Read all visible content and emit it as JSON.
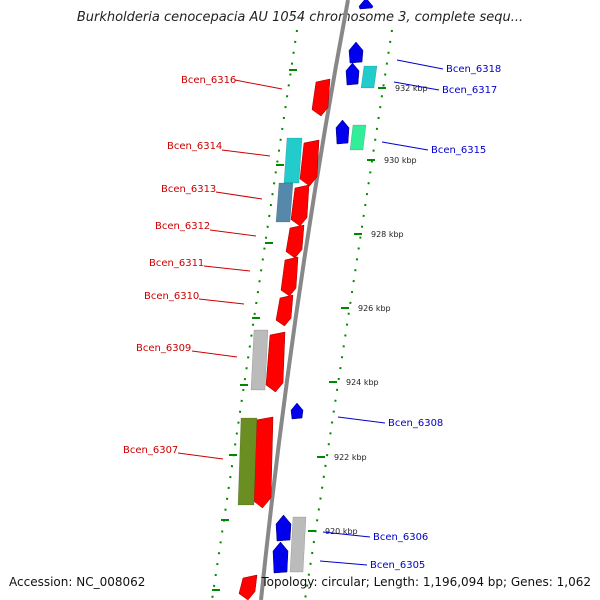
{
  "title": "Burkholderia cenocepacia AU 1054 chromosome 3, complete sequ...",
  "accession": "Accession: NC_008062",
  "summary": "Topology: circular; Length: 1,196,094 bp; Genes: 1,062",
  "colors": {
    "forward_strand_label": "#cc0000",
    "reverse_strand_label": "#0000cc",
    "forward_gene": "#ff0000",
    "reverse_gene": "#0000ee",
    "backbone": "#888888",
    "dotted_ring": "#008800",
    "cyan_feature": "#22cccc",
    "steel_feature": "#5588aa",
    "olive_feature": "#6b8e23",
    "gray_feature": "#bbbbbb",
    "mint_feature": "#33ee99"
  },
  "tick_labels": [
    "932 kbp",
    "930 kbp",
    "928 kbp",
    "926 kbp",
    "924 kbp",
    "922 kbp",
    "920 kbp"
  ],
  "genes_left": [
    "Bcen_6316",
    "Bcen_6314",
    "Bcen_6313",
    "Bcen_6312",
    "Bcen_6311",
    "Bcen_6310",
    "Bcen_6309",
    "Bcen_6307"
  ],
  "genes_right": [
    "Bcen_6318",
    "Bcen_6317",
    "Bcen_6315",
    "Bcen_6308",
    "Bcen_6306",
    "Bcen_6305"
  ]
}
